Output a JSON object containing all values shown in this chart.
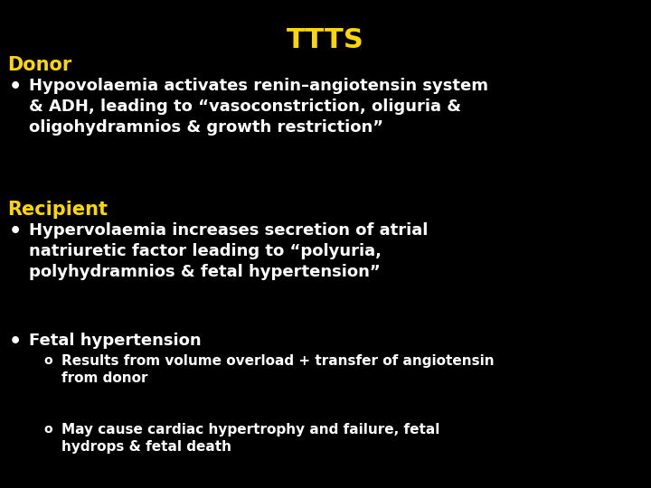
{
  "background_color": "#000000",
  "title": "TTTS",
  "title_color": "#FFD700",
  "title_fontsize": 22,
  "title_fontweight": "bold",
  "donor_label": "Donor",
  "donor_color": "#FFD700",
  "donor_fontsize": 15,
  "donor_fontweight": "bold",
  "recipient_label": "Recipient",
  "recipient_color": "#FFD700",
  "recipient_fontsize": 15,
  "recipient_fontweight": "bold",
  "bullet_color": "#FFFFFF",
  "bullet_fontsize": 13,
  "bullet_fontweight": "bold",
  "sub_bullet_color": "#FFFFFF",
  "sub_bullet_fontsize": 11,
  "sub_bullet_fontweight": "bold",
  "donor_bullet": "Hypovolaemia activates renin–angiotensin system\n& ADH, leading to “vasoconstriction, oliguria &\noligohydramnios & growth restriction”",
  "recipient_bullet1": "Hypervolaemia increases secretion of atrial\nnatriuretic factor leading to “polyuria,\npolyhydramnios & fetal hypertension”",
  "recipient_bullet2": "Fetal hypertension",
  "sub_bullet1": "Results from volume overload + transfer of angiotensin\nfrom donor",
  "sub_bullet2": "May cause cardiac hypertrophy and failure, fetal\nhydrops & fetal death"
}
